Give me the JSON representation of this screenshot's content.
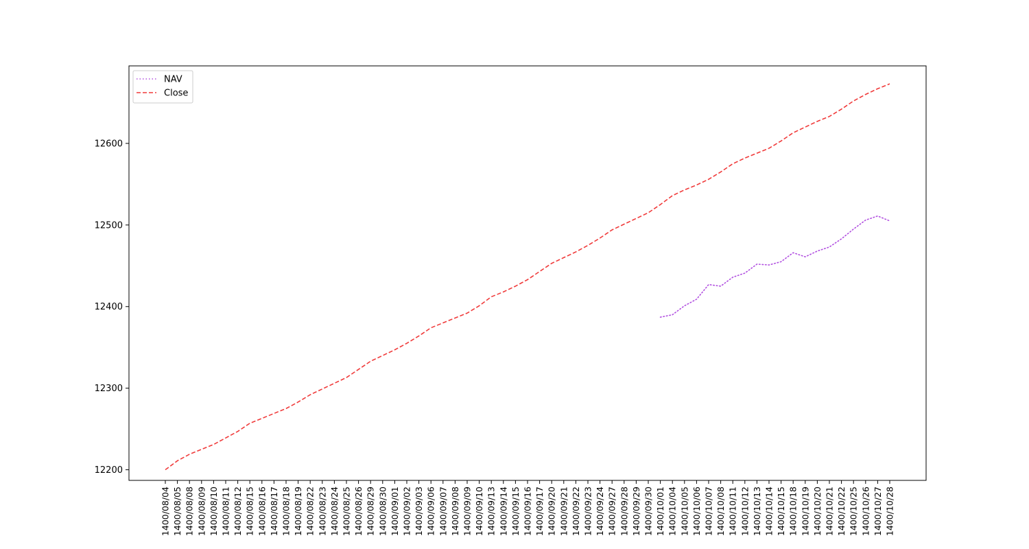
{
  "chart_data": {
    "type": "line",
    "title": "",
    "xlabel": "",
    "ylabel": "",
    "ylim": [
      12187,
      12695
    ],
    "yticks": [
      12200,
      12300,
      12400,
      12500,
      12600
    ],
    "grid": false,
    "legend_position": "top-left",
    "categories": [
      "1400/08/04",
      "1400/08/05",
      "1400/08/08",
      "1400/08/09",
      "1400/08/10",
      "1400/08/11",
      "1400/08/12",
      "1400/08/15",
      "1400/08/16",
      "1400/08/17",
      "1400/08/18",
      "1400/08/19",
      "1400/08/22",
      "1400/08/23",
      "1400/08/24",
      "1400/08/25",
      "1400/08/26",
      "1400/08/29",
      "1400/08/30",
      "1400/09/01",
      "1400/09/02",
      "1400/09/03",
      "1400/09/06",
      "1400/09/07",
      "1400/09/08",
      "1400/09/09",
      "1400/09/10",
      "1400/09/13",
      "1400/09/14",
      "1400/09/15",
      "1400/09/16",
      "1400/09/17",
      "1400/09/20",
      "1400/09/21",
      "1400/09/22",
      "1400/09/23",
      "1400/09/24",
      "1400/09/27",
      "1400/09/28",
      "1400/09/29",
      "1400/09/30",
      "1400/10/01",
      "1400/10/04",
      "1400/10/05",
      "1400/10/06",
      "1400/10/07",
      "1400/10/08",
      "1400/10/11",
      "1400/10/12",
      "1400/10/13",
      "1400/10/14",
      "1400/10/15",
      "1400/10/18",
      "1400/10/19",
      "1400/10/20",
      "1400/10/21",
      "1400/10/22",
      "1400/10/25",
      "1400/10/26",
      "1400/10/27",
      "1400/10/28"
    ],
    "series": [
      {
        "name": "NAV",
        "color": "#b14fe0",
        "style": "dotted",
        "values": [
          null,
          null,
          null,
          null,
          null,
          null,
          null,
          null,
          null,
          null,
          null,
          null,
          null,
          null,
          null,
          null,
          null,
          null,
          null,
          null,
          null,
          null,
          null,
          null,
          null,
          null,
          null,
          null,
          null,
          null,
          null,
          null,
          null,
          null,
          null,
          null,
          null,
          null,
          null,
          null,
          null,
          12387,
          12390,
          12401,
          12409,
          12427,
          12425,
          12436,
          12441,
          12452,
          12451,
          12455,
          12466,
          12461,
          12468,
          12473,
          12483,
          12495,
          12506,
          12511,
          12505
        ]
      },
      {
        "name": "Close",
        "color": "#f03a3a",
        "style": "dashed",
        "values": [
          12200,
          12211,
          12219,
          12225,
          12231,
          12239,
          12247,
          12257,
          12263,
          12269,
          12275,
          12283,
          12292,
          12299,
          12306,
          12313,
          12323,
          12333,
          12340,
          12347,
          12355,
          12364,
          12374,
          12380,
          12386,
          12392,
          12401,
          12412,
          12418,
          12425,
          12433,
          12443,
          12453,
          12460,
          12467,
          12475,
          12484,
          12494,
          12501,
          12508,
          12515,
          12525,
          12536,
          12543,
          12549,
          12556,
          12565,
          12575,
          12582,
          12588,
          12594,
          12603,
          12613,
          12620,
          12627,
          12633,
          12642,
          12652,
          12660,
          12667,
          12673
        ]
      }
    ]
  }
}
